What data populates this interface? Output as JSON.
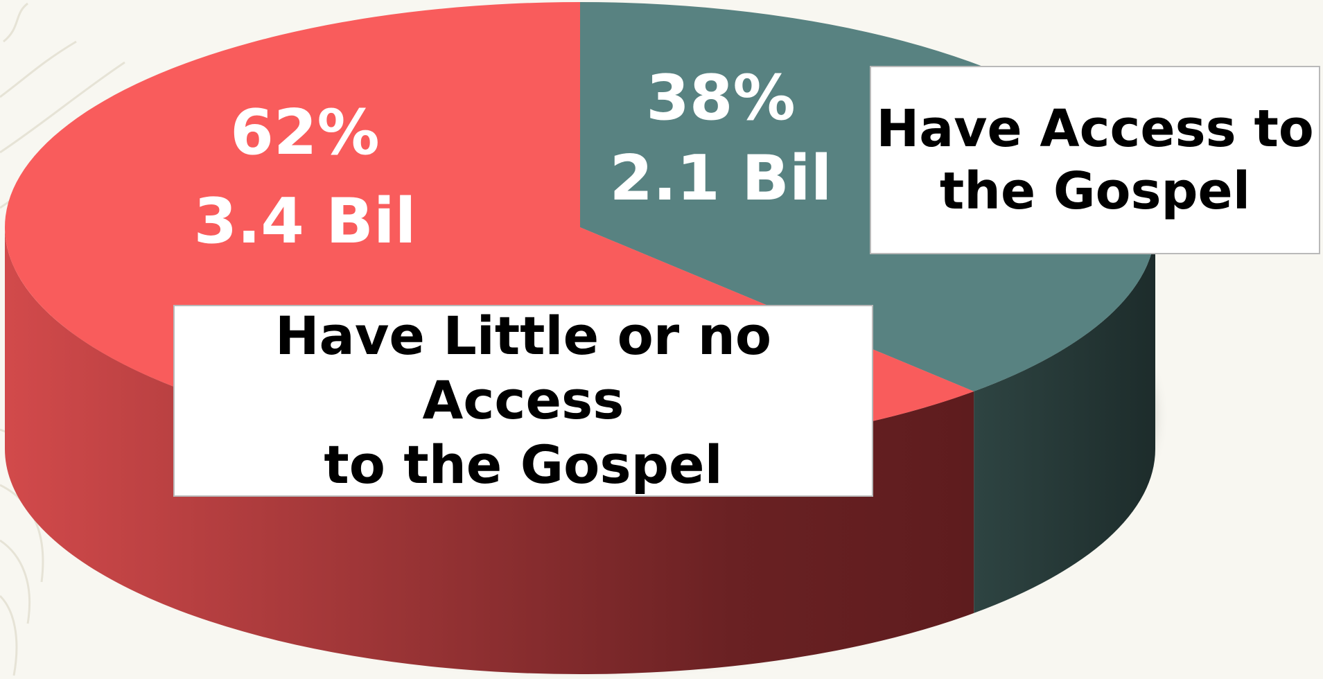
{
  "chart_data": {
    "type": "pie",
    "title": "",
    "slices": [
      {
        "percent": 62,
        "percent_label": "62%",
        "count_label": "3.4 Bil",
        "legend": "Have Little or no Access to the Gospel",
        "legend_lines": [
          "Have Little or no Access",
          "to the Gospel"
        ],
        "color": "#f95c5c",
        "side_color_light": "#d24a4b",
        "side_color_dark": "#5e1c1e"
      },
      {
        "percent": 38,
        "percent_label": "38%",
        "count_label": "2.1 Bil",
        "legend": "Have Access to the Gospel",
        "legend_lines": [
          "Have Access to",
          "the Gospel"
        ],
        "color": "#588281",
        "side_color_light": "#2e4442",
        "side_color_dark": "#1d2c2b"
      }
    ],
    "style": "3d",
    "label_color": "#ffffff"
  }
}
